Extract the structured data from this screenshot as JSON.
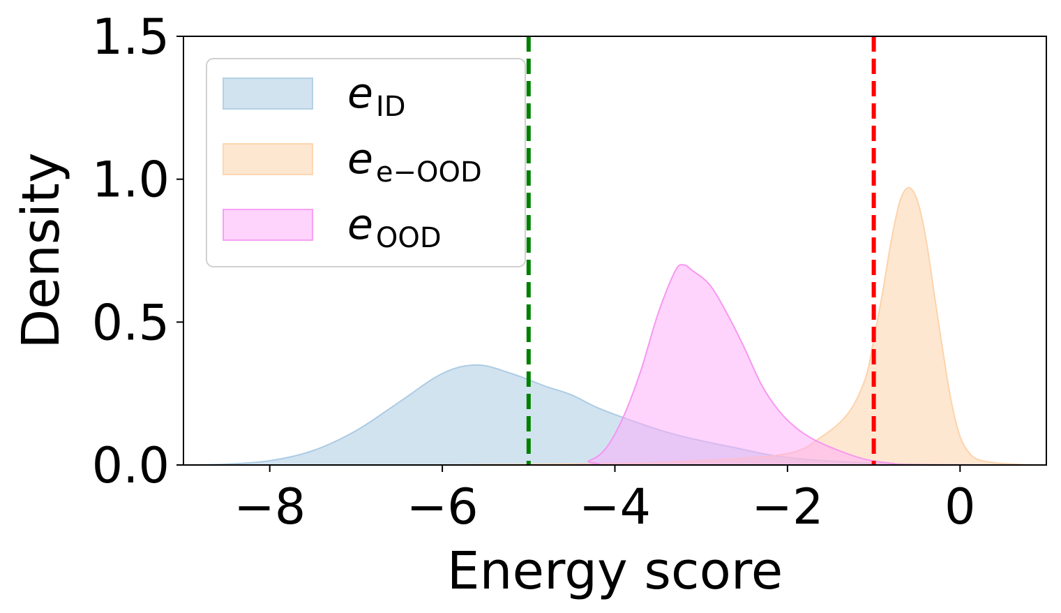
{
  "chart_data": {
    "type": "area",
    "xlabel": "Energy score",
    "ylabel": "Density",
    "xlim": [
      -9,
      1
    ],
    "ylim": [
      0,
      1.5
    ],
    "xticks": [
      -8,
      -6,
      -4,
      -2,
      0
    ],
    "xtick_labels": [
      "−8",
      "−6",
      "−4",
      "−2",
      "0"
    ],
    "yticks": [
      0,
      0.5,
      1.0,
      1.5
    ],
    "ytick_labels": [
      "0.0",
      "0.5",
      "1.0",
      "1.5"
    ],
    "grid": false,
    "legend_placement": "top-left",
    "series": [
      {
        "name_main": "e",
        "name_sub": "ID",
        "fill": "#a6c8e1",
        "stroke": "#a6c8e1",
        "x": [
          -9.0,
          -8.5,
          -8.0,
          -7.5,
          -7.0,
          -6.5,
          -6.0,
          -5.6,
          -5.2,
          -4.8,
          -4.5,
          -4.2,
          -3.8,
          -3.4,
          -3.0,
          -2.6,
          -2.2,
          -1.8,
          -1.4,
          -1.0,
          -0.6,
          -0.2,
          0.2,
          0.6,
          1.0
        ],
        "y": [
          0.0,
          0.003,
          0.015,
          0.05,
          0.12,
          0.22,
          0.32,
          0.35,
          0.32,
          0.275,
          0.245,
          0.2,
          0.155,
          0.115,
          0.085,
          0.06,
          0.035,
          0.02,
          0.012,
          0.006,
          0.003,
          0.001,
          0.0,
          0.0,
          0.0
        ]
      },
      {
        "name_main": "e",
        "name_sub": "e−OOD",
        "fill": "#fdcfa4",
        "stroke": "#fdcfa4",
        "x": [
          -9.0,
          -6.0,
          -4.0,
          -3.0,
          -2.0,
          -1.6,
          -1.3,
          -1.1,
          -1.0,
          -0.9,
          -0.8,
          -0.7,
          -0.6,
          -0.5,
          -0.4,
          -0.3,
          -0.2,
          -0.1,
          0.0,
          0.1,
          0.2,
          0.4,
          0.7,
          1.0
        ],
        "y": [
          0.0,
          0.0,
          0.005,
          0.015,
          0.04,
          0.1,
          0.18,
          0.3,
          0.44,
          0.6,
          0.78,
          0.92,
          0.97,
          0.93,
          0.8,
          0.6,
          0.4,
          0.22,
          0.1,
          0.045,
          0.02,
          0.008,
          0.002,
          0.0
        ]
      },
      {
        "name_main": "e",
        "name_sub": "OOD",
        "fill": "#fdaafb",
        "stroke": "#f58ff0",
        "x": [
          -9.0,
          -4.6,
          -4.3,
          -4.1,
          -3.9,
          -3.7,
          -3.5,
          -3.3,
          -3.2,
          -3.1,
          -2.9,
          -2.7,
          -2.5,
          -2.3,
          -2.1,
          -1.9,
          -1.7,
          -1.4,
          -1.1,
          -0.8,
          -0.5,
          1.0
        ],
        "y": [
          0.0,
          0.0,
          0.015,
          0.06,
          0.17,
          0.33,
          0.53,
          0.68,
          0.7,
          0.68,
          0.63,
          0.53,
          0.41,
          0.28,
          0.19,
          0.13,
          0.09,
          0.05,
          0.02,
          0.006,
          0.001,
          0.0
        ]
      }
    ],
    "vlines": [
      {
        "x": -5.0,
        "color": "#008000",
        "style": "dashed"
      },
      {
        "x": -1.0,
        "color": "#ff0000",
        "style": "dashed"
      }
    ]
  }
}
